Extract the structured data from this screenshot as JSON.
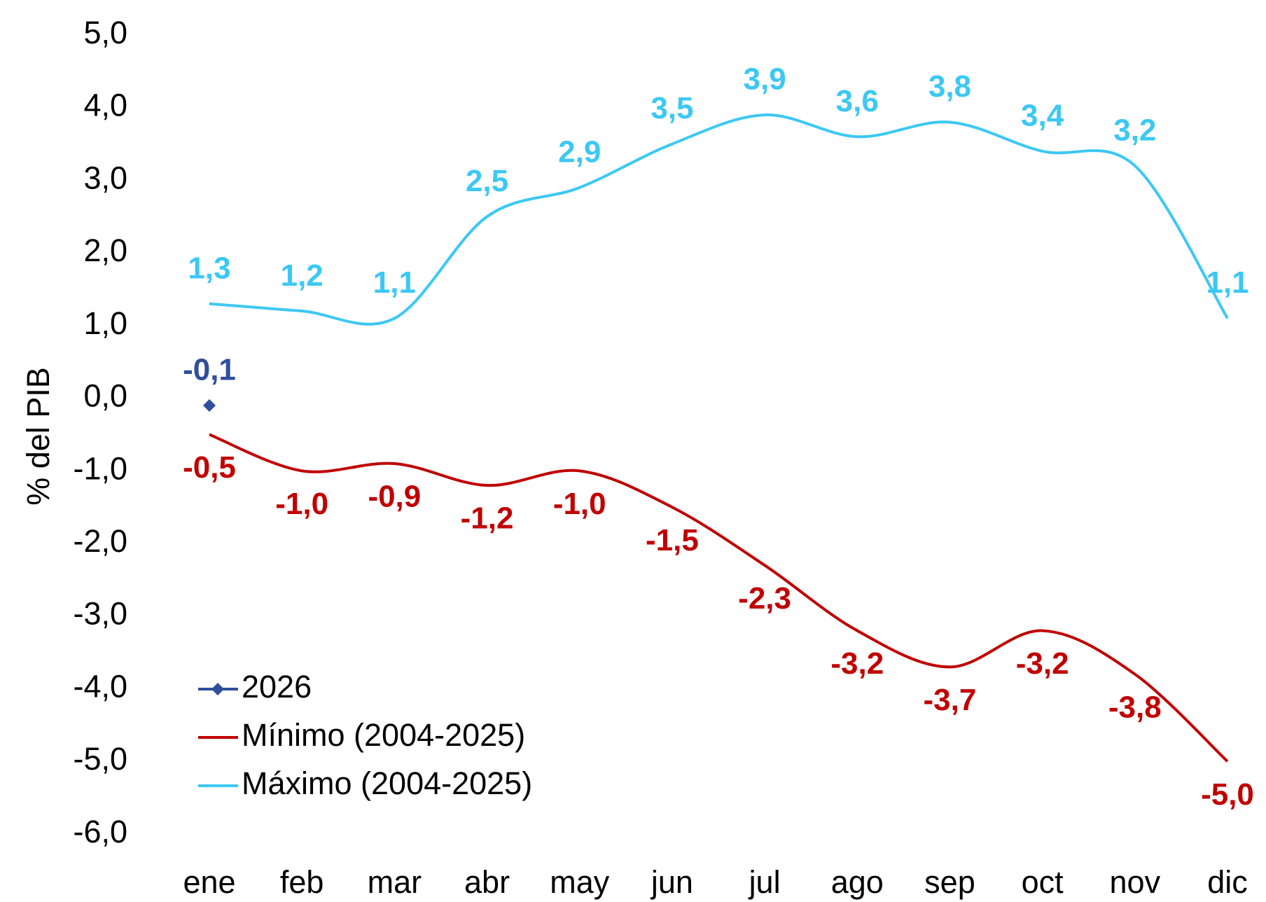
{
  "chart_data": {
    "type": "line",
    "y_label": "% del PIB",
    "categories": [
      "ene",
      "feb",
      "mar",
      "abr",
      "may",
      "jun",
      "jul",
      "ago",
      "sep",
      "oct",
      "nov",
      "dic"
    ],
    "ylim": [
      -6,
      5
    ],
    "yticks": [
      {
        "value": -6,
        "label": "-6,0"
      },
      {
        "value": -5,
        "label": "-5,0"
      },
      {
        "value": -4,
        "label": "-4,0"
      },
      {
        "value": -3,
        "label": "-3,0"
      },
      {
        "value": -2,
        "label": "-2,0"
      },
      {
        "value": -1,
        "label": "-1,0"
      },
      {
        "value": 0,
        "label": "0,0"
      },
      {
        "value": 1,
        "label": "1,0"
      },
      {
        "value": 2,
        "label": "2,0"
      },
      {
        "value": 3,
        "label": "3,0"
      },
      {
        "value": 4,
        "label": "4,0"
      },
      {
        "value": 5,
        "label": "5,0"
      }
    ],
    "grid": false,
    "legend": "lower left",
    "series": [
      {
        "name": "2026",
        "color": "#2f4f9c",
        "marker": "diamond",
        "label_position": "above",
        "values": [
          -0.1,
          null,
          null,
          null,
          null,
          null,
          null,
          null,
          null,
          null,
          null,
          null
        ],
        "value_labels": [
          "-0,1",
          null,
          null,
          null,
          null,
          null,
          null,
          null,
          null,
          null,
          null,
          null
        ]
      },
      {
        "name": "Mínimo (2004-2025)",
        "color": "#c00000",
        "label_position": "below",
        "values": [
          -0.5,
          -1.0,
          -0.9,
          -1.2,
          -1.0,
          -1.5,
          -2.3,
          -3.2,
          -3.7,
          -3.2,
          -3.8,
          -5.0
        ],
        "value_labels": [
          "-0,5",
          "-1,0",
          "-0,9",
          "-1,2",
          "-1,0",
          "-1,5",
          "-2,3",
          "-3,2",
          "-3,7",
          "-3,2",
          "-3,8",
          "-5,0"
        ]
      },
      {
        "name": "Máximo (2004-2025)",
        "color": "#3cc8f4",
        "label_position": "above",
        "values": [
          1.3,
          1.2,
          1.1,
          2.5,
          2.9,
          3.5,
          3.9,
          3.6,
          3.8,
          3.4,
          3.2,
          1.1
        ],
        "value_labels": [
          "1,3",
          "1,2",
          "1,1",
          "2,5",
          "2,9",
          "3,5",
          "3,9",
          "3,6",
          "3,8",
          "3,4",
          "3,2",
          "1,1"
        ]
      }
    ]
  }
}
